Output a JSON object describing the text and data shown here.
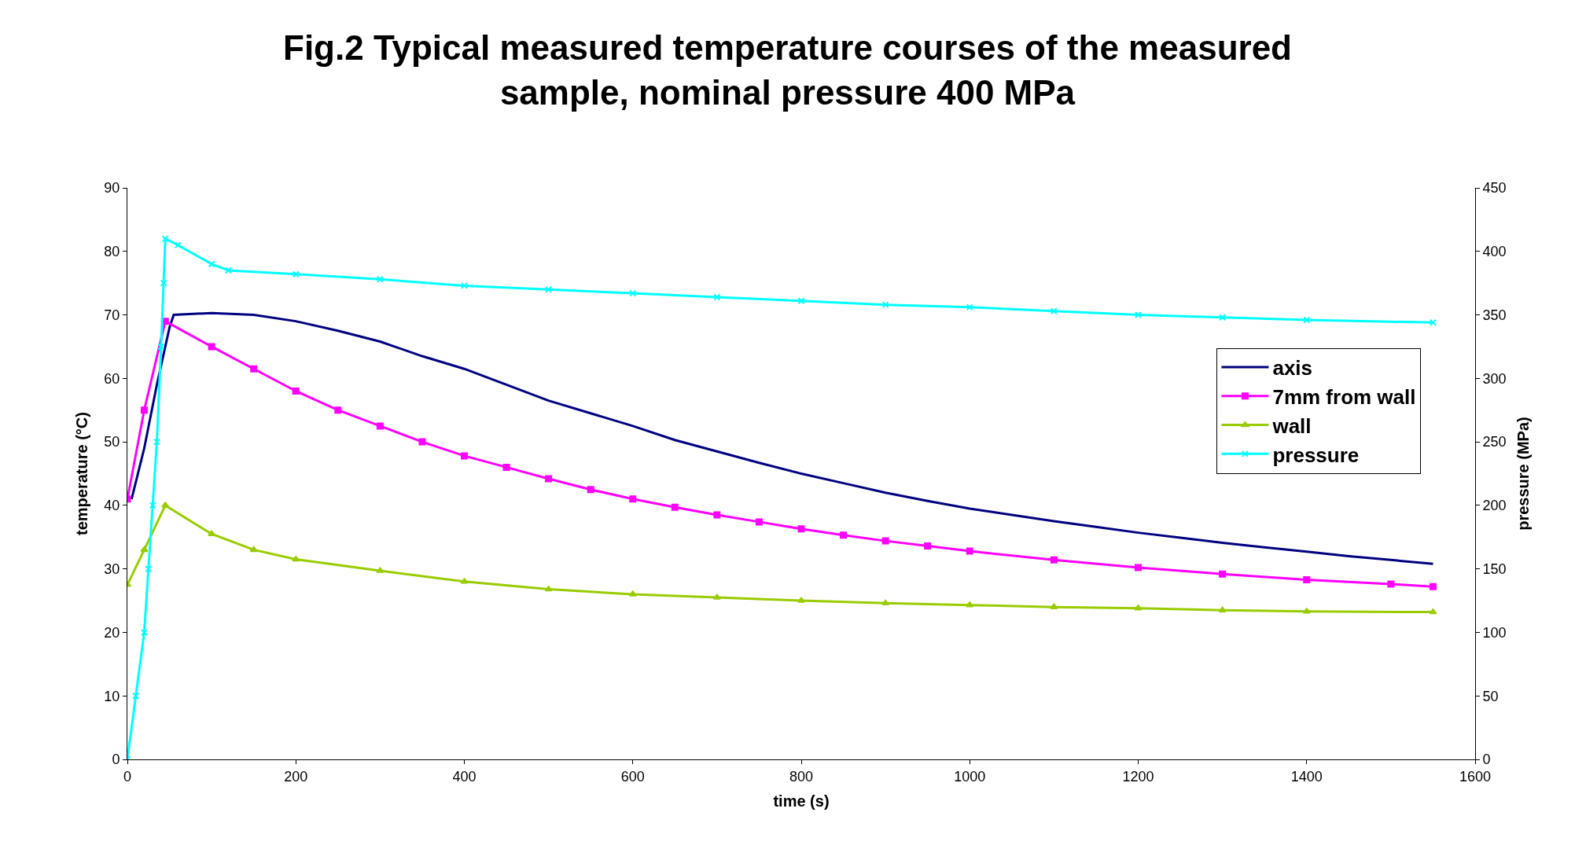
{
  "chart_data": {
    "type": "line",
    "title": "Fig.2 Typical measured temperature courses of the measured sample, nominal pressure 400 MPa",
    "xlabel": "time (s)",
    "ylabel": "temperature (°C)",
    "y2label": "pressure (MPa)",
    "xlim": [
      0,
      1600
    ],
    "xticks": [
      0,
      200,
      400,
      600,
      800,
      1000,
      1200,
      1400,
      1600
    ],
    "ylim": [
      0,
      90
    ],
    "yticks": [
      0,
      10,
      20,
      30,
      40,
      50,
      60,
      70,
      80,
      90
    ],
    "y2lim": [
      0,
      450
    ],
    "y2ticks": [
      0,
      50,
      100,
      150,
      200,
      250,
      300,
      350,
      400,
      450
    ],
    "legend": "top right",
    "series": [
      {
        "name": "axis",
        "color": "#000080",
        "marker": "none",
        "x": [
          5,
          20,
          35,
          50,
          55,
          100,
          150,
          200,
          250,
          300,
          350,
          400,
          450,
          500,
          550,
          600,
          650,
          700,
          750,
          800,
          850,
          900,
          950,
          1000,
          1050,
          1100,
          1150,
          1200,
          1250,
          1300,
          1350,
          1400,
          1450,
          1500,
          1550
        ],
        "values": [
          41,
          49,
          59,
          68,
          70,
          70.3,
          70,
          69,
          67.5,
          65.8,
          63.5,
          61.5,
          59,
          56.5,
          54.5,
          52.5,
          50.3,
          48.5,
          46.7,
          45,
          43.5,
          42,
          40.7,
          39.5,
          38.5,
          37.5,
          36.6,
          35.7,
          34.9,
          34.1,
          33.4,
          32.7,
          32,
          31.4,
          30.8
        ]
      },
      {
        "name": "7mm from wall",
        "color": "#ff00ff",
        "marker": "square",
        "x": [
          0,
          20,
          45,
          100,
          150,
          200,
          250,
          300,
          350,
          400,
          450,
          500,
          550,
          600,
          650,
          700,
          750,
          800,
          850,
          900,
          950,
          1000,
          1100,
          1200,
          1300,
          1400,
          1500,
          1550
        ],
        "values": [
          41,
          55,
          69,
          65,
          61.5,
          58,
          55,
          52.5,
          50,
          47.8,
          46,
          44.2,
          42.5,
          41,
          39.7,
          38.5,
          37.4,
          36.3,
          35.3,
          34.4,
          33.6,
          32.8,
          31.4,
          30.2,
          29.2,
          28.3,
          27.6,
          27.2
        ]
      },
      {
        "name": "wall",
        "color": "#99cc00",
        "marker": "triangle",
        "x": [
          0,
          20,
          45,
          100,
          150,
          200,
          300,
          400,
          500,
          600,
          700,
          800,
          900,
          1000,
          1100,
          1200,
          1300,
          1400,
          1550
        ],
        "values": [
          27.5,
          33,
          40,
          35.5,
          33,
          31.5,
          29.7,
          28,
          26.8,
          26,
          25.5,
          25,
          24.6,
          24.3,
          24,
          23.8,
          23.5,
          23.3,
          23.2
        ]
      },
      {
        "name": "pressure",
        "color": "#00ffff",
        "marker": "cross",
        "axis": "y2",
        "x": [
          0,
          10,
          20,
          25,
          30,
          35,
          40,
          43,
          45,
          60,
          100,
          120,
          200,
          300,
          400,
          500,
          600,
          700,
          800,
          900,
          1000,
          1100,
          1200,
          1300,
          1400,
          1550
        ],
        "values": [
          0,
          50,
          100,
          150,
          200,
          250,
          325,
          375,
          410,
          405,
          390,
          385,
          382,
          378,
          373,
          370,
          367,
          364,
          361,
          358,
          356,
          353,
          350,
          348,
          346,
          344
        ]
      }
    ]
  }
}
